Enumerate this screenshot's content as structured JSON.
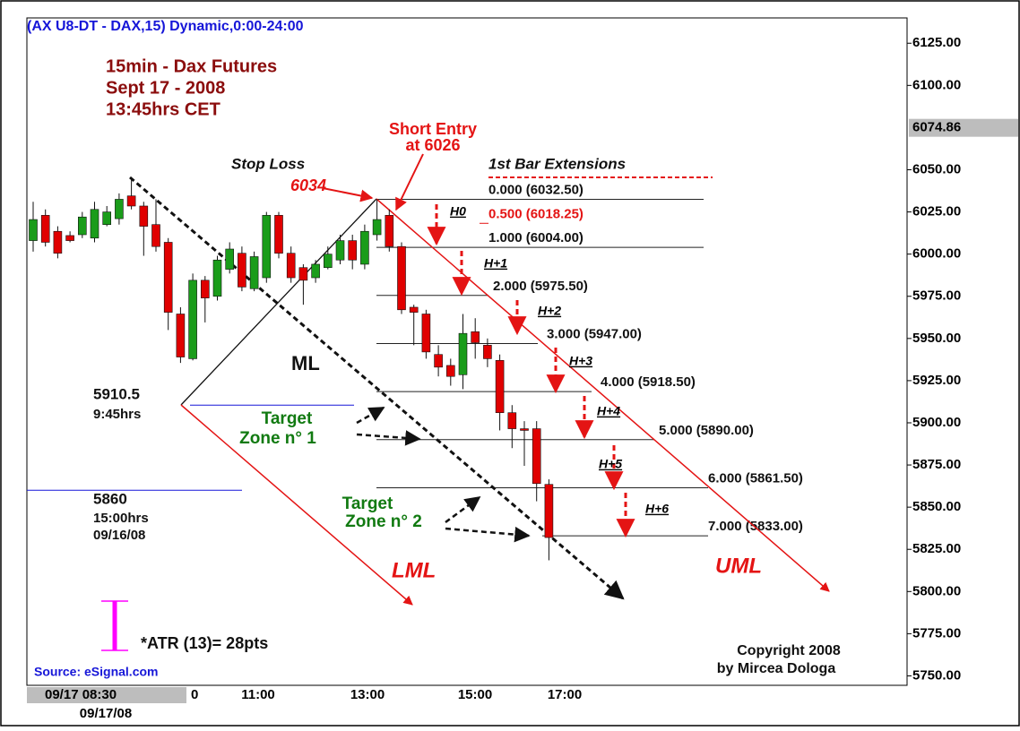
{
  "chart_data": {
    "type": "candlestick",
    "header": "(AX U8-DT - DAX,15) Dynamic,0:00-24:00",
    "title_lines": [
      "15min - Dax Futures",
      "Sept 17 - 2008",
      "13:45hrs CET"
    ],
    "ylim": [
      5746,
      6140
    ],
    "yticks": [
      {
        "value": 6125,
        "label": "6125.00"
      },
      {
        "value": 6100,
        "label": "6100.00"
      },
      {
        "value": 6050,
        "label": "6050.00"
      },
      {
        "value": 6025,
        "label": "6025.00"
      },
      {
        "value": 6000,
        "label": "6000.00"
      },
      {
        "value": 5975,
        "label": "5975.00"
      },
      {
        "value": 5950,
        "label": "5950.00"
      },
      {
        "value": 5925,
        "label": "5925.00"
      },
      {
        "value": 5900,
        "label": "5900.00"
      },
      {
        "value": 5875,
        "label": "5875.00"
      },
      {
        "value": 5850,
        "label": "5850.00"
      },
      {
        "value": 5825,
        "label": "5825.00"
      },
      {
        "value": 5800,
        "label": "5800.00"
      },
      {
        "value": 5775,
        "label": "5775.00"
      },
      {
        "value": 5750,
        "label": "5750.00"
      }
    ],
    "last_price": 6074.86,
    "grid": true,
    "x_labels": [
      "09/17 08:30",
      "0",
      "11:00",
      "13:00",
      "15:00",
      "17:00"
    ],
    "x_sublabel": "09/17/08",
    "up_color": "#1a9c1a",
    "down_color": "#e00000",
    "ohlc": {
      "open": [
        6008,
        6023,
        6013.5,
        6011,
        6011.5,
        6009.5,
        6017.5,
        6021,
        6034.5,
        6028.5,
        6017.5,
        6007,
        5964.5,
        5938,
        5984.5,
        5975,
        5991,
        6000.5,
        5979.5,
        5986,
        6023,
        6000.5,
        5992,
        5986,
        5992,
        5996.5,
        6008,
        5994,
        6011.5,
        6023,
        6004.5,
        5968.5,
        5964.5,
        5940.5,
        5934,
        5928.5,
        5954,
        5946,
        5937,
        5906,
        5896.5,
        5896.5,
        5863.5
      ],
      "high": [
        6031,
        6026.5,
        6016.5,
        6013.5,
        6025,
        6031,
        6028.5,
        6036,
        6045,
        6031,
        6032.5,
        6009.5,
        5968.5,
        5988.5,
        5987,
        5999,
        6007,
        6004.5,
        6001.5,
        6025,
        6025,
        6004.5,
        5994,
        5996.5,
        6004.5,
        6011.5,
        6011.5,
        6017.5,
        6032.5,
        6026.5,
        6007,
        5970,
        5967,
        5946,
        5938,
        5964.5,
        5962,
        5950,
        5940.5,
        5910.5,
        5901,
        5901,
        5866.5
      ],
      "low": [
        6001.5,
        6004.5,
        5997.5,
        6007,
        6009.5,
        6007,
        6016.5,
        6017.5,
        6026.5,
        5999,
        6001.5,
        5955,
        5935.5,
        5937,
        5959.5,
        5972.5,
        5988.5,
        5978,
        5978,
        5983,
        5997.5,
        5983,
        5970,
        5983,
        5991,
        5994,
        5991,
        5991,
        6008,
        6001.5,
        5964.5,
        5946,
        5938,
        5927.5,
        5922,
        5920,
        5938,
        5933,
        5895.5,
        5885,
        5874.5,
        5853.5,
        5818.5
      ],
      "close": [
        6020.5,
        6007,
        6000.5,
        6008,
        6022,
        6026.5,
        6025,
        6032.5,
        6028.5,
        6016.5,
        6004.5,
        5965.5,
        5939,
        5984.5,
        5974,
        5996.5,
        6003,
        5980.5,
        5998.5,
        6023,
        6000.5,
        5986,
        5984.5,
        5994,
        6000,
        6008,
        5996.5,
        6013.5,
        6020.5,
        6004.5,
        5967,
        5965.5,
        5942,
        5933,
        5927.5,
        5953,
        5947.5,
        5938,
        5906,
        5896.5,
        5895.5,
        5864,
        5832
      ]
    },
    "levels": [
      {
        "value": 6032.5,
        "label": "0.000 (6032.50)"
      },
      {
        "value": 6018.25,
        "label": "0.500 (6018.25)"
      },
      {
        "value": 6004,
        "label": "1.000 (6004.00)"
      },
      {
        "value": 5975.5,
        "label": "2.000 (5975.50)"
      },
      {
        "value": 5947,
        "label": "3.000 (5947.00)"
      },
      {
        "value": 5918.5,
        "label": "4.000 (5918.50)"
      },
      {
        "value": 5890,
        "label": "5.000 (5890.00)"
      },
      {
        "value": 5861.5,
        "label": "6.000 (5861.50)"
      },
      {
        "value": 5833,
        "label": "7.000 (5833.00)"
      }
    ],
    "extension_labels": [
      "H0",
      "H+1",
      "H+2",
      "H+3",
      "H+4",
      "H+5",
      "H+6"
    ],
    "extensions_title": "1st Bar Extensions",
    "pivots": [
      {
        "value": 5910.5,
        "time": "9:45hrs"
      },
      {
        "value": 5860,
        "time": "15:00hrs",
        "date": "09/16/08"
      }
    ],
    "short_entry": [
      "Short Entry",
      "at 6026"
    ],
    "stop_loss": "Stop Loss",
    "stop_value": 6034,
    "ml": "ML",
    "lml": "LML",
    "uml": "UML",
    "target_1": [
      "Target",
      "Zone n° 1"
    ],
    "target_2": [
      "Target",
      "Zone n° 2"
    ],
    "atr": "*ATR (13)= 28pts",
    "copyright": [
      "Copyright 2008",
      "by Mircea Dologa"
    ],
    "source": "Source: eSignal.com"
  }
}
